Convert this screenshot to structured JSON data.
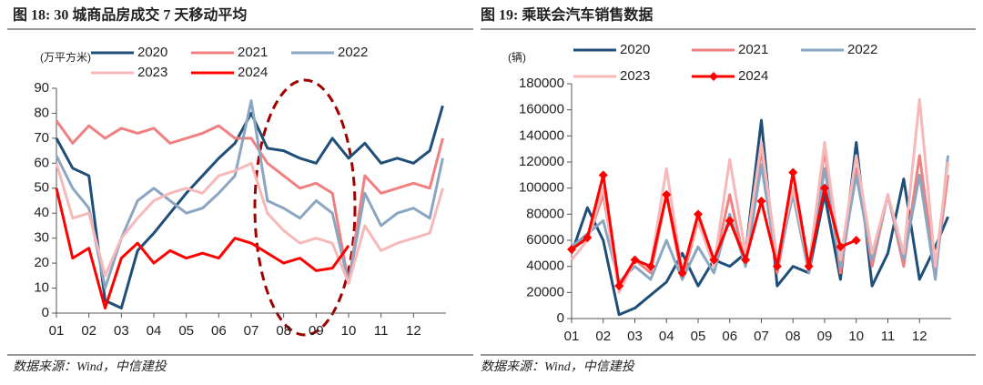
{
  "chart_data": [
    {
      "type": "line",
      "title": "图 18: 30 城商品房成交 7 天移动平均",
      "y_label": "(万平方米)",
      "source": "数据来源：Wind，中信建投",
      "x": [
        1,
        1.5,
        2,
        2.5,
        3,
        3.5,
        4,
        4.5,
        5,
        5.5,
        6,
        6.5,
        7,
        7.5,
        8,
        8.5,
        9,
        9.5,
        10,
        10.5,
        11,
        11.5,
        12,
        12.5,
        12.9
      ],
      "xlim": [
        1,
        13
      ],
      "xticks": [
        {
          "value": 1,
          "label": "01"
        },
        {
          "value": 2,
          "label": "02"
        },
        {
          "value": 3,
          "label": "03"
        },
        {
          "value": 4,
          "label": "04"
        },
        {
          "value": 5,
          "label": "05"
        },
        {
          "value": 6,
          "label": "06"
        },
        {
          "value": 7,
          "label": "07"
        },
        {
          "value": 8,
          "label": "08"
        },
        {
          "value": 9,
          "label": "09"
        },
        {
          "value": 10,
          "label": "10"
        },
        {
          "value": 11,
          "label": "11"
        },
        {
          "value": 12,
          "label": "12"
        }
      ],
      "ylim": [
        0,
        90
      ],
      "yticks": [
        0,
        10,
        20,
        30,
        40,
        50,
        60,
        70,
        80,
        90
      ],
      "grid": false,
      "series": [
        {
          "name": "2020",
          "color": "#1f4e79",
          "values": [
            70,
            58,
            55,
            5,
            2,
            25,
            32,
            40,
            48,
            55,
            62,
            68,
            80,
            66,
            65,
            62,
            60,
            70,
            62,
            68,
            60,
            62,
            60,
            65,
            83
          ]
        },
        {
          "name": "2021",
          "color": "#f08080",
          "values": [
            77,
            68,
            75,
            70,
            74,
            72,
            74,
            68,
            70,
            72,
            75,
            70,
            70,
            60,
            55,
            50,
            52,
            48,
            12,
            55,
            48,
            50,
            52,
            50,
            70
          ]
        },
        {
          "name": "2022",
          "color": "#8aa6c1",
          "values": [
            63,
            50,
            42,
            10,
            30,
            45,
            50,
            45,
            40,
            42,
            48,
            55,
            85,
            45,
            42,
            38,
            45,
            40,
            12,
            48,
            35,
            40,
            42,
            38,
            62
          ]
        },
        {
          "name": "2023",
          "color": "#f6b8b8",
          "values": [
            60,
            38,
            40,
            15,
            30,
            38,
            45,
            48,
            50,
            48,
            55,
            57,
            60,
            40,
            33,
            28,
            30,
            28,
            12,
            35,
            25,
            28,
            30,
            32,
            50
          ]
        },
        {
          "name": "2024",
          "color": "#ff0000",
          "values": [
            50,
            22,
            26,
            2,
            22,
            28,
            20,
            25,
            22,
            24,
            22,
            30,
            28,
            24,
            20,
            22,
            17,
            18,
            27,
            null,
            null,
            null,
            null,
            null,
            null
          ]
        }
      ]
    },
    {
      "type": "line",
      "title": "图 19: 乘联会汽车销售数据",
      "y_label": "(辆)",
      "source": "数据来源：Wind，中信建投",
      "x": [
        1,
        1.5,
        2,
        2.5,
        3,
        3.5,
        4,
        4.5,
        5,
        5.5,
        6,
        6.5,
        7,
        7.5,
        8,
        8.5,
        9,
        9.5,
        10,
        10.5,
        11,
        11.5,
        12,
        12.5,
        12.9
      ],
      "xlim": [
        1,
        13
      ],
      "xticks": [
        {
          "value": 1,
          "label": "01"
        },
        {
          "value": 2,
          "label": "02"
        },
        {
          "value": 3,
          "label": "03"
        },
        {
          "value": 4,
          "label": "04"
        },
        {
          "value": 5,
          "label": "05"
        },
        {
          "value": 6,
          "label": "06"
        },
        {
          "value": 7,
          "label": "07"
        },
        {
          "value": 8,
          "label": "08"
        },
        {
          "value": 9,
          "label": "09"
        },
        {
          "value": 10,
          "label": "10"
        },
        {
          "value": 11,
          "label": "11"
        },
        {
          "value": 12,
          "label": "12"
        }
      ],
      "ylim": [
        0,
        180000
      ],
      "yticks": [
        0,
        20000,
        40000,
        60000,
        80000,
        100000,
        120000,
        140000,
        160000,
        180000
      ],
      "grid": false,
      "series": [
        {
          "name": "2020",
          "color": "#1f4e79",
          "values": [
            50000,
            85000,
            60000,
            3000,
            8000,
            18000,
            28000,
            50000,
            25000,
            45000,
            40000,
            50000,
            152000,
            25000,
            40000,
            35000,
            95000,
            30000,
            135000,
            25000,
            50000,
            107000,
            30000,
            55000,
            78000
          ]
        },
        {
          "name": "2021",
          "color": "#f08080",
          "values": [
            55000,
            60000,
            95000,
            25000,
            45000,
            35000,
            95000,
            30000,
            75000,
            40000,
            95000,
            40000,
            130000,
            35000,
            100000,
            35000,
            130000,
            35000,
            115000,
            40000,
            95000,
            40000,
            125000,
            35000,
            110000
          ]
        },
        {
          "name": "2022",
          "color": "#8aa6c1",
          "values": [
            55000,
            65000,
            75000,
            28000,
            40000,
            30000,
            60000,
            30000,
            55000,
            35000,
            80000,
            40000,
            118000,
            40000,
            95000,
            35000,
            115000,
            40000,
            110000,
            45000,
            95000,
            45000,
            110000,
            30000,
            125000
          ]
        },
        {
          "name": "2023",
          "color": "#f6b8b8",
          "values": [
            45000,
            60000,
            100000,
            20000,
            45000,
            40000,
            115000,
            35000,
            75000,
            40000,
            122000,
            50000,
            135000,
            45000,
            100000,
            40000,
            135000,
            45000,
            125000,
            50000,
            95000,
            50000,
            168000,
            40000,
            120000
          ]
        },
        {
          "name": "2024",
          "color": "#ff0000",
          "marker": "diamond",
          "values": [
            53000,
            62000,
            110000,
            25000,
            45000,
            40000,
            95000,
            35000,
            80000,
            45000,
            75000,
            45000,
            90000,
            40000,
            112000,
            40000,
            100000,
            55000,
            60000,
            null,
            null,
            null,
            null,
            null,
            null
          ]
        }
      ]
    }
  ]
}
